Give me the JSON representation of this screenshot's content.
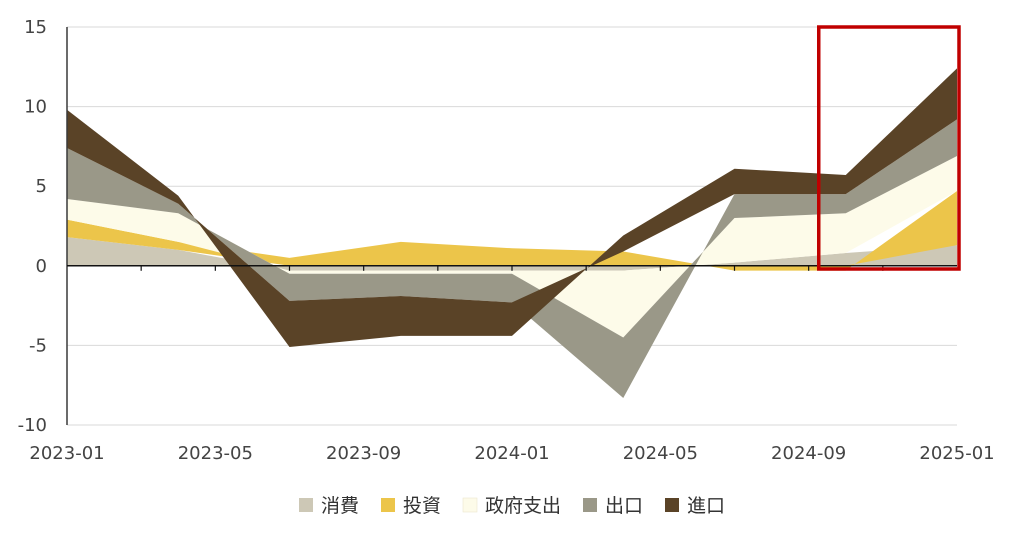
{
  "chart_data": {
    "type": "area",
    "subtype": "stacked-contribution",
    "categories": [
      "2023-01",
      "2023-04",
      "2023-07",
      "2023-10",
      "2024-01",
      "2024-04",
      "2024-07",
      "2024-10",
      "2025-01"
    ],
    "x_tick_labels": [
      "2023-01",
      "2023-05",
      "2023-09",
      "2024-01",
      "2024-05",
      "2024-09",
      "2025-01"
    ],
    "ylim": [
      -10,
      15
    ],
    "y_ticks": [
      15,
      10,
      5,
      0,
      -5,
      -10
    ],
    "grid": true,
    "legend_position": "bottom",
    "highlight": {
      "from_category": "2024-10",
      "to_category": "2025-01",
      "color": "#c00000"
    },
    "series": [
      {
        "name": "消費",
        "color": "#cdc8b6",
        "values": [
          1.8,
          1.0,
          -0.3,
          -0.3,
          -0.3,
          -0.3,
          0.2,
          0.8,
          1.3
        ]
      },
      {
        "name": "投資",
        "color": "#ecc54a",
        "values": [
          1.1,
          0.5,
          0.5,
          1.5,
          1.1,
          0.9,
          -0.3,
          -0.3,
          3.4
        ]
      },
      {
        "name": "政府支出",
        "color": "#fdfbe9",
        "values": [
          1.3,
          1.8,
          -0.2,
          -0.2,
          -0.2,
          -4.2,
          2.8,
          2.5,
          2.2
        ]
      },
      {
        "name": "出口",
        "color": "#9a9888",
        "values": [
          3.2,
          0.6,
          -1.7,
          -1.4,
          -1.8,
          -3.8,
          1.5,
          1.2,
          2.3
        ]
      },
      {
        "name": "進口",
        "color": "#5a4327",
        "values": [
          2.4,
          0.5,
          -2.9,
          -2.5,
          -2.1,
          1.0,
          1.6,
          1.2,
          3.2
        ]
      }
    ]
  }
}
